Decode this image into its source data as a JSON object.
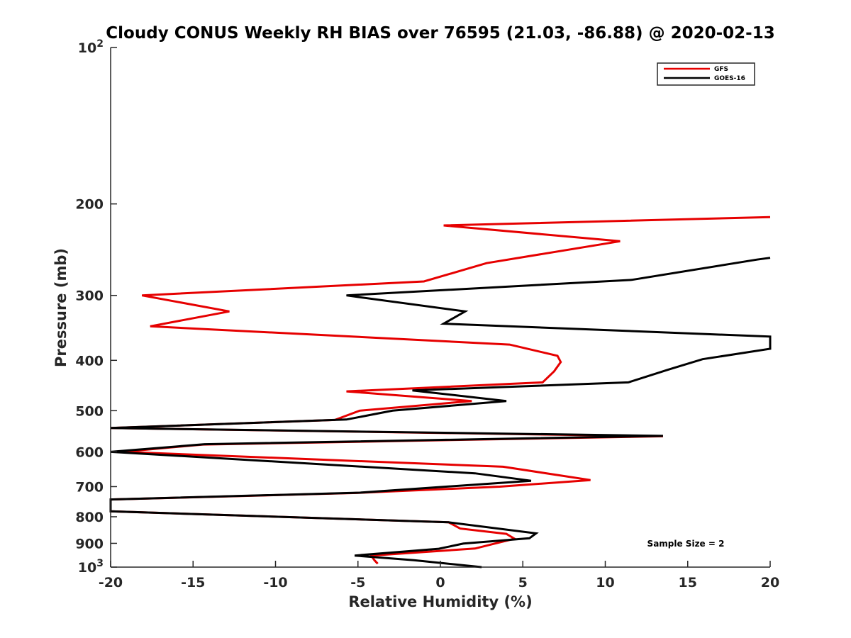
{
  "chart_data": {
    "type": "line",
    "title": "Cloudy CONUS Weekly RH BIAS over 76595 (21.03, -86.88) @ 2020-02-13",
    "xlabel": "Relative Humidity (%)",
    "ylabel": "Pressure (mb)",
    "xlim": [
      -20,
      20
    ],
    "ylim": [
      100,
      1000
    ],
    "yscale": "log",
    "y_direction": "reversed",
    "xticks": [
      -20,
      -15,
      -10,
      -5,
      0,
      5,
      10,
      15,
      20
    ],
    "xtick_labels": [
      "-20",
      "-15",
      "-10",
      "-5",
      "0",
      "5",
      "10",
      "15",
      "20"
    ],
    "yticks": [
      200,
      300,
      400,
      500,
      600,
      700,
      800,
      900
    ],
    "ytick_labels": [
      "200",
      "300",
      "400",
      "500",
      "600",
      "700",
      "800",
      "900"
    ],
    "ytick_top": {
      "base": "10",
      "exp": "2"
    },
    "ytick_bottom": {
      "base": "10",
      "exp": "3"
    },
    "grid": false,
    "legend_position": "top-right",
    "series": [
      {
        "name": "GFS",
        "color": "#e60000",
        "points": [
          {
            "x": 20,
            "y": 212
          },
          {
            "x": 0.2,
            "y": 220
          },
          {
            "x": 10.9,
            "y": 236
          },
          {
            "x": 2.8,
            "y": 260
          },
          {
            "x": -1.0,
            "y": 282
          },
          {
            "x": -18.1,
            "y": 300
          },
          {
            "x": -12.8,
            "y": 322
          },
          {
            "x": -17.6,
            "y": 344
          },
          {
            "x": 4.2,
            "y": 373
          },
          {
            "x": 7.1,
            "y": 392
          },
          {
            "x": 7.3,
            "y": 403
          },
          {
            "x": 6.9,
            "y": 420
          },
          {
            "x": 6.2,
            "y": 441
          },
          {
            "x": -5.7,
            "y": 459
          },
          {
            "x": 1.9,
            "y": 479
          },
          {
            "x": -4.9,
            "y": 500
          },
          {
            "x": -6.4,
            "y": 521
          },
          {
            "x": -20,
            "y": 540
          },
          {
            "x": 13.5,
            "y": 560
          },
          {
            "x": -14.4,
            "y": 581
          },
          {
            "x": -19.3,
            "y": 600
          },
          {
            "x": 3.8,
            "y": 641
          },
          {
            "x": 9.1,
            "y": 680
          },
          {
            "x": 3.6,
            "y": 700
          },
          {
            "x": -5.1,
            "y": 720
          },
          {
            "x": -20,
            "y": 741
          },
          {
            "x": -20,
            "y": 781
          },
          {
            "x": 0.5,
            "y": 820
          },
          {
            "x": 1.2,
            "y": 843
          },
          {
            "x": 4.0,
            "y": 863
          },
          {
            "x": 4.5,
            "y": 882
          },
          {
            "x": 3.3,
            "y": 901
          },
          {
            "x": 2.1,
            "y": 921
          },
          {
            "x": -4.2,
            "y": 950
          },
          {
            "x": -4.0,
            "y": 970
          },
          {
            "x": -3.8,
            "y": 985
          }
        ]
      },
      {
        "name": "GOES-16",
        "color": "#000000",
        "points": [
          {
            "x": 20,
            "y": 254
          },
          {
            "x": 19.2,
            "y": 256
          },
          {
            "x": 11.6,
            "y": 280
          },
          {
            "x": -5.7,
            "y": 300
          },
          {
            "x": 1.5,
            "y": 322
          },
          {
            "x": 0.2,
            "y": 340
          },
          {
            "x": 20,
            "y": 360
          },
          {
            "x": 20,
            "y": 380
          },
          {
            "x": 15.9,
            "y": 398
          },
          {
            "x": 13.8,
            "y": 417
          },
          {
            "x": 11.4,
            "y": 441
          },
          {
            "x": -1.7,
            "y": 457
          },
          {
            "x": 4.0,
            "y": 479
          },
          {
            "x": -2.9,
            "y": 500
          },
          {
            "x": -5.7,
            "y": 520
          },
          {
            "x": -20,
            "y": 540
          },
          {
            "x": 13.5,
            "y": 559
          },
          {
            "x": -14.3,
            "y": 580
          },
          {
            "x": -20,
            "y": 600
          },
          {
            "x": 2.1,
            "y": 660
          },
          {
            "x": 5.5,
            "y": 682
          },
          {
            "x": -4.9,
            "y": 719
          },
          {
            "x": -20,
            "y": 741
          },
          {
            "x": -20,
            "y": 781
          },
          {
            "x": 0.5,
            "y": 820
          },
          {
            "x": 5.8,
            "y": 861
          },
          {
            "x": 5.4,
            "y": 880
          },
          {
            "x": 1.4,
            "y": 901
          },
          {
            "x": -0.1,
            "y": 922
          },
          {
            "x": -5.2,
            "y": 950
          },
          {
            "x": -1.6,
            "y": 970
          },
          {
            "x": 2.5,
            "y": 1000
          }
        ]
      }
    ],
    "annotation": "Sample Size = 2"
  }
}
